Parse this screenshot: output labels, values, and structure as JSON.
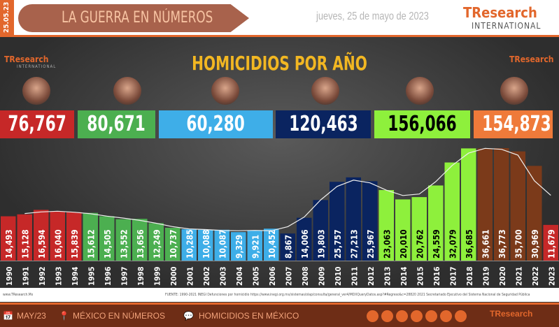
{
  "header": {
    "date_band": "25.05.23",
    "banner_title": "LA GUERRA EN NÚMEROS",
    "date_text": "jueves, 25 de mayo de 2023",
    "logo": {
      "tr": "TR",
      "research": "esearch",
      "intl": "INTERNATIONAL"
    }
  },
  "colors": {
    "accent": "#e2672c",
    "title": "#f2b722"
  },
  "totals": [
    {
      "value": "76,767",
      "color": "#c62828"
    },
    {
      "value": "80,671",
      "color": "#4caf50"
    },
    {
      "value": "60,280",
      "color": "#3eaee8"
    },
    {
      "value": "120,463",
      "color": "#0a2460"
    },
    {
      "value": "156,066",
      "color": "#8ef03c",
      "text": "#000"
    },
    {
      "value": "154,873",
      "color": "#ef7a3a"
    }
  ],
  "chart_data": {
    "type": "bar",
    "title": "HOMICIDIOS POR AÑO",
    "categories": [
      "1990",
      "1991",
      "1992",
      "1993",
      "1994",
      "1995",
      "1996",
      "1997",
      "1998",
      "1999",
      "2000",
      "2001",
      "2002",
      "2003",
      "2004",
      "2005",
      "2006",
      "2007",
      "2008",
      "2009",
      "2010",
      "2011",
      "2012",
      "2013",
      "2014",
      "2015",
      "2016",
      "2017",
      "2018",
      "2019",
      "2020",
      "2021",
      "2022",
      "2023"
    ],
    "values": [
      14493,
      15128,
      16594,
      16040,
      15839,
      15612,
      14505,
      13552,
      13656,
      12249,
      10737,
      10285,
      10088,
      10087,
      9329,
      9921,
      10452,
      8867,
      14006,
      19803,
      25757,
      27213,
      25967,
      23063,
      20010,
      20762,
      24559,
      32079,
      36685,
      36661,
      36773,
      35700,
      30969,
      11679
    ],
    "labels": [
      "14,493",
      "15,128",
      "16,594",
      "16,040",
      "15,839",
      "15,612",
      "14,505",
      "13,552",
      "13,656",
      "12,249",
      "10,737",
      "10,285",
      "10,088",
      "10,087",
      "9,329",
      "9,921",
      "10,452",
      "8,867",
      "14,006",
      "19,803",
      "25,757",
      "27,213",
      "25,967",
      "23,063",
      "20,010",
      "20,762",
      "24,559",
      "32,079",
      "36,685",
      "36,661",
      "36,773",
      "35,700",
      "30,969",
      "11,679"
    ],
    "bar_colors": [
      "#c62828",
      "#c62828",
      "#c62828",
      "#c62828",
      "#c62828",
      "#4caf50",
      "#4caf50",
      "#4caf50",
      "#4caf50",
      "#4caf50",
      "#4caf50",
      "#3eaee8",
      "#3eaee8",
      "#3eaee8",
      "#3eaee8",
      "#3eaee8",
      "#3eaee8",
      "#0a2460",
      "#0a2460",
      "#0a2460",
      "#0a2460",
      "#0a2460",
      "#0a2460",
      "#8ef03c",
      "#8ef03c",
      "#8ef03c",
      "#8ef03c",
      "#8ef03c",
      "#8ef03c",
      "#7b3a1a",
      "#7b3a1a",
      "#7b3a1a",
      "#7b3a1a",
      "#c62828"
    ],
    "trend_line": true,
    "ylim": [
      0,
      37000
    ],
    "grid": false
  },
  "source": {
    "left": "www.TResearch.Mx",
    "right": "FUENTE: 1990-2021 INEGI Defunciones por homicidio https://www.inegi.org.mx/sistemas/olap/consulta/general_ver4/MDXQueryDatos.asp?#Regreso&c=28820  2021 Secretariado Ejecutivo del Sistema Nacional de Seguridad Pública"
  },
  "footer": {
    "items": [
      "MAY/23",
      "MÉXICO EN NÚMEROS",
      "HOMICIDIOS EN MÉXICO"
    ],
    "social_icons": [
      "globe-icon",
      "phone-icon",
      "email-icon",
      "twitter-icon",
      "facebook-icon",
      "linkedin-icon",
      "youtube-icon"
    ]
  }
}
